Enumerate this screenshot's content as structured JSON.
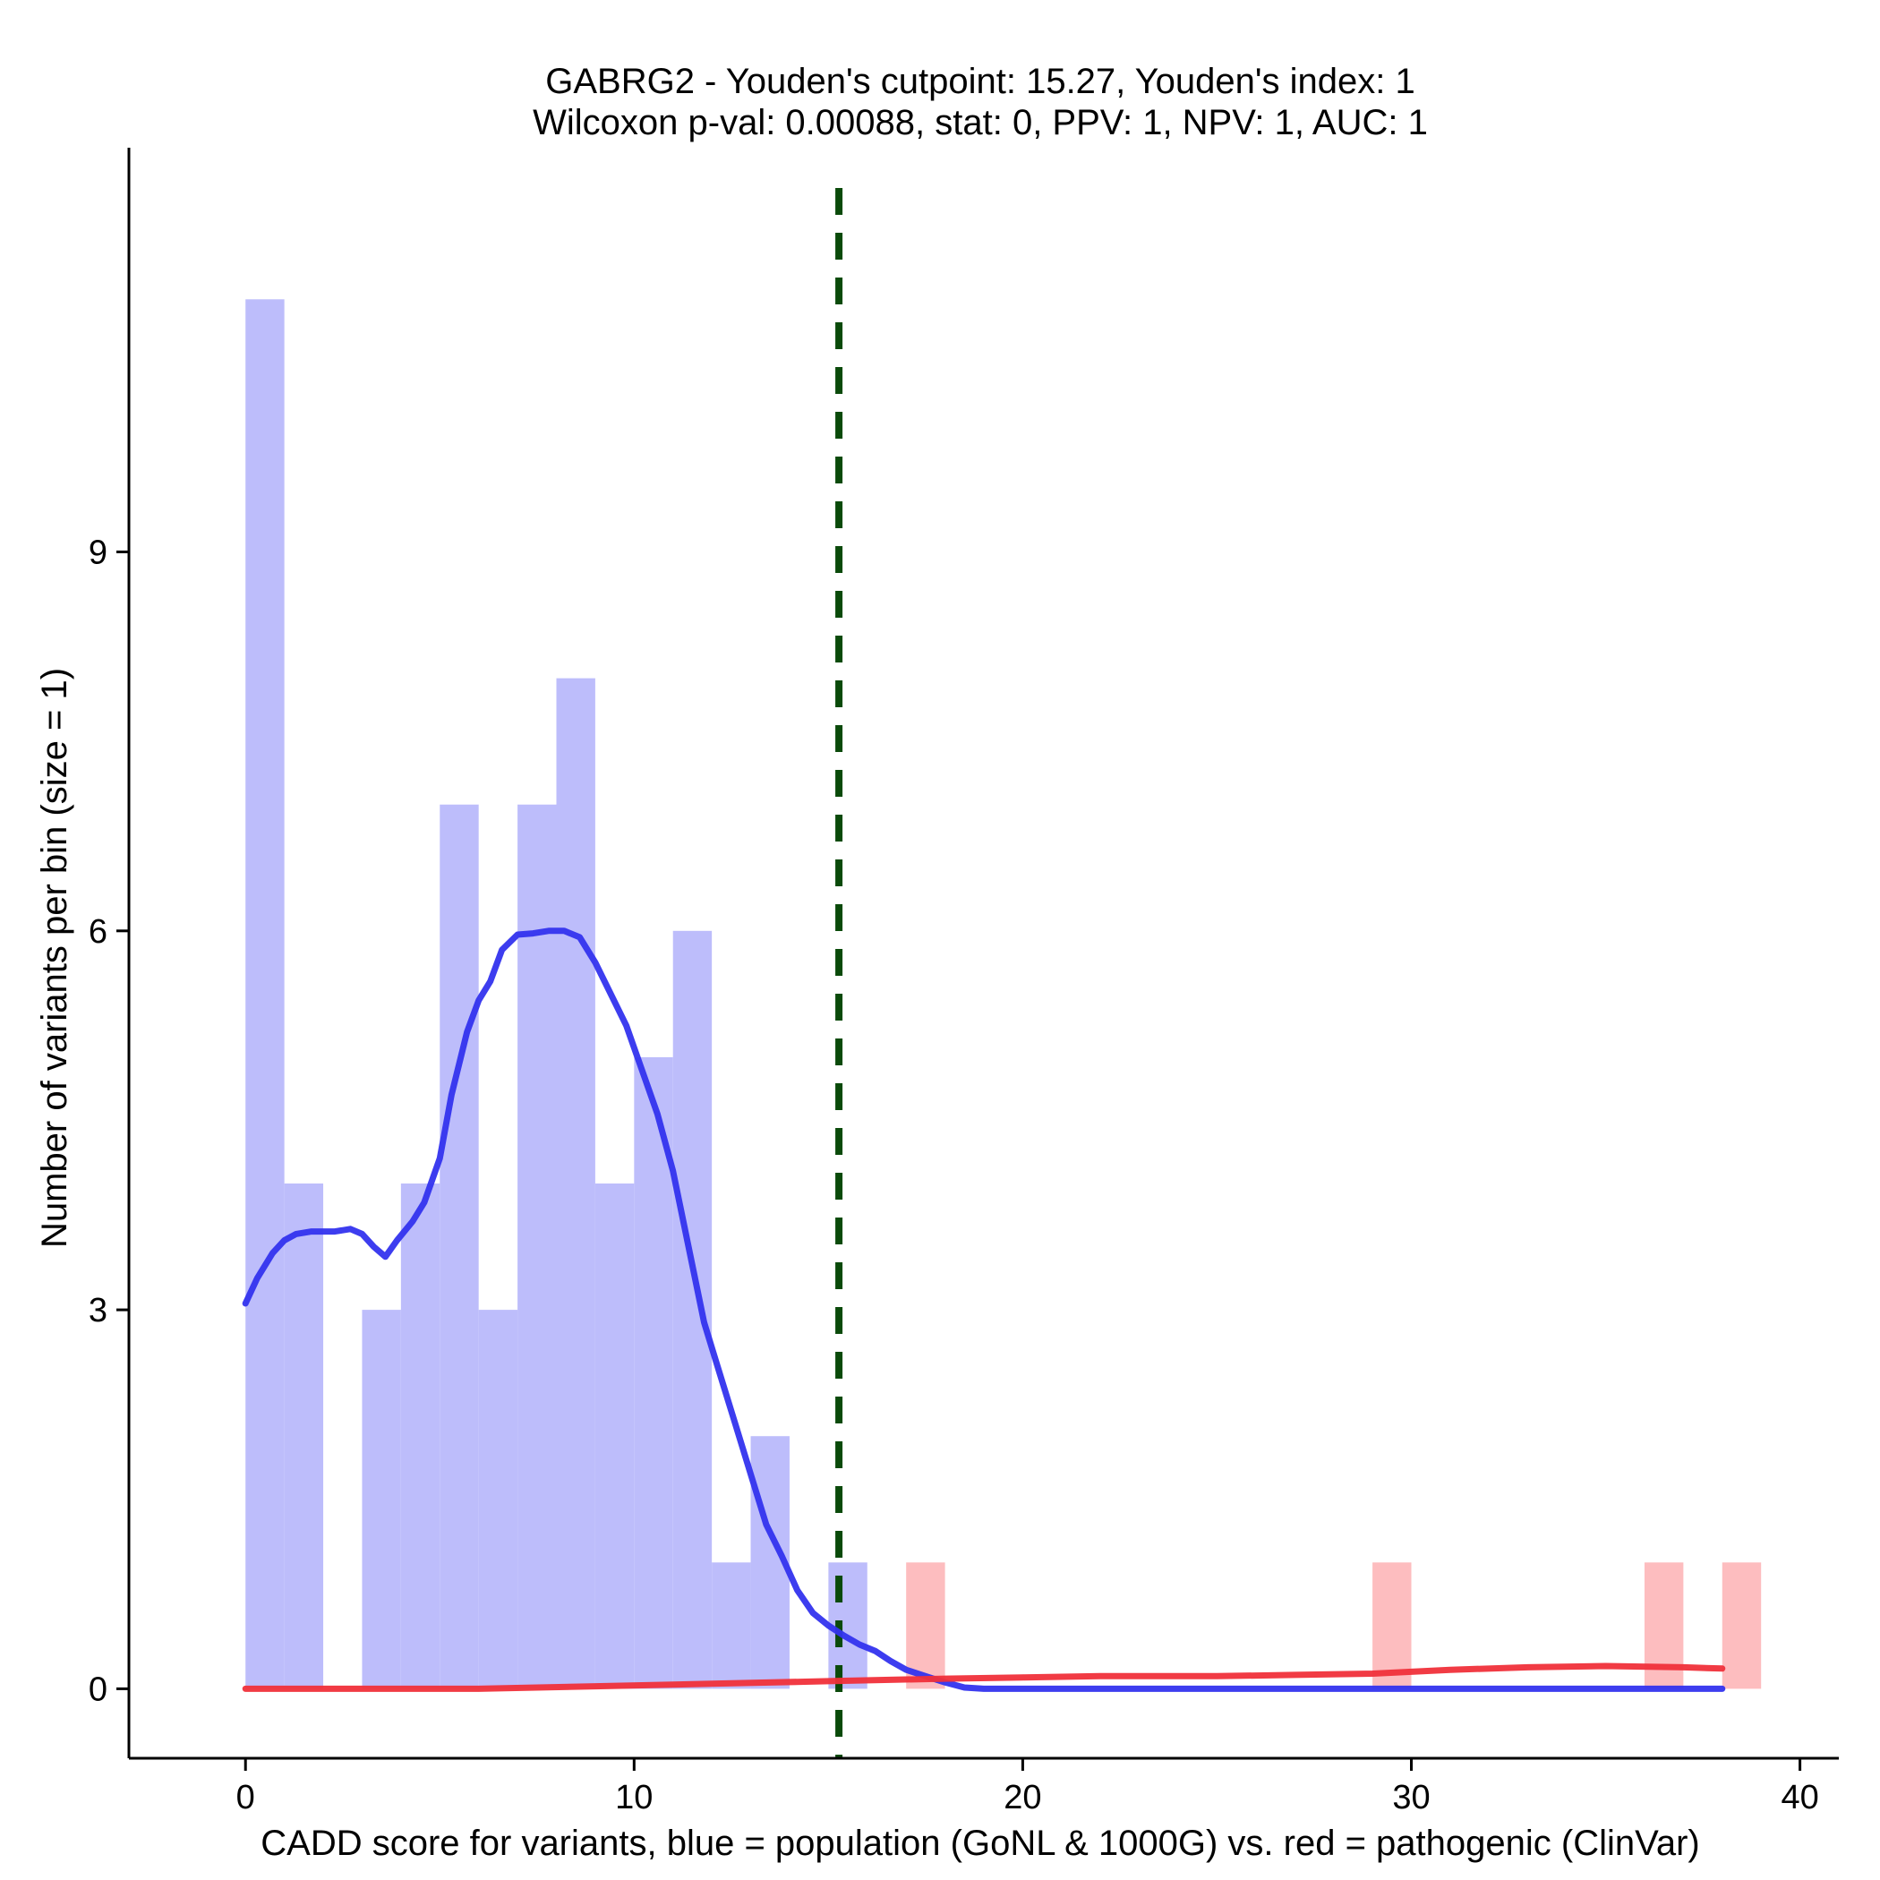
{
  "chart_data": {
    "type": "bar",
    "title": "GABRG2 - Youden's cutpoint: 15.27, Youden's index: 1",
    "subtitle": "Wilcoxon p-val: 0.00088, stat: 0, PPV: 1, NPV: 1, AUC: 1",
    "xlabel": "CADD score for variants, blue = population (GoNL & 1000G) vs. red = pathogenic (ClinVar)",
    "ylabel": "Number of variants per bin (size = 1)",
    "xlim": [
      -3,
      41
    ],
    "ylim": [
      -0.55,
      12.2
    ],
    "x_ticks": [
      0,
      10,
      20,
      30,
      40
    ],
    "y_ticks": [
      0,
      3,
      6,
      9
    ],
    "bin_width": 1,
    "cutpoint": 15.27,
    "colors": {
      "population_bars": "#bdbdfb",
      "pathogenic_bars": "#fdbdbf",
      "population_density": "#3333ee",
      "pathogenic_density": "#f0303a",
      "cutpoint_line": "#0a4a0a"
    },
    "series": [
      {
        "name": "population (GoNL & 1000G)",
        "bins": [
          {
            "x0": 0,
            "count": 11
          },
          {
            "x0": 1,
            "count": 4
          },
          {
            "x0": 2,
            "count": 0
          },
          {
            "x0": 3,
            "count": 3
          },
          {
            "x0": 4,
            "count": 4
          },
          {
            "x0": 5,
            "count": 7
          },
          {
            "x0": 6,
            "count": 3
          },
          {
            "x0": 7,
            "count": 7
          },
          {
            "x0": 8,
            "count": 8
          },
          {
            "x0": 9,
            "count": 4
          },
          {
            "x0": 10,
            "count": 5
          },
          {
            "x0": 11,
            "count": 6
          },
          {
            "x0": 12,
            "count": 1
          },
          {
            "x0": 13,
            "count": 2
          },
          {
            "x0": 14,
            "count": 0
          },
          {
            "x0": 15,
            "count": 1
          }
        ],
        "density": [
          [
            0,
            3.05
          ],
          [
            0.3,
            3.25
          ],
          [
            0.7,
            3.45
          ],
          [
            1.0,
            3.55
          ],
          [
            1.3,
            3.6
          ],
          [
            1.7,
            3.62
          ],
          [
            2.0,
            3.62
          ],
          [
            2.3,
            3.62
          ],
          [
            2.7,
            3.64
          ],
          [
            3.0,
            3.6
          ],
          [
            3.3,
            3.5
          ],
          [
            3.6,
            3.42
          ],
          [
            3.9,
            3.55
          ],
          [
            4.3,
            3.7
          ],
          [
            4.6,
            3.85
          ],
          [
            5.0,
            4.2
          ],
          [
            5.3,
            4.7
          ],
          [
            5.7,
            5.2
          ],
          [
            6.0,
            5.45
          ],
          [
            6.3,
            5.6
          ],
          [
            6.6,
            5.85
          ],
          [
            7.0,
            5.97
          ],
          [
            7.4,
            5.98
          ],
          [
            7.8,
            6.0
          ],
          [
            8.2,
            6.0
          ],
          [
            8.6,
            5.95
          ],
          [
            9.0,
            5.75
          ],
          [
            9.4,
            5.5
          ],
          [
            9.8,
            5.25
          ],
          [
            10.2,
            4.9
          ],
          [
            10.6,
            4.55
          ],
          [
            11.0,
            4.1
          ],
          [
            11.4,
            3.5
          ],
          [
            11.8,
            2.9
          ],
          [
            12.2,
            2.5
          ],
          [
            12.6,
            2.1
          ],
          [
            13.0,
            1.7
          ],
          [
            13.4,
            1.3
          ],
          [
            13.8,
            1.05
          ],
          [
            14.2,
            0.78
          ],
          [
            14.6,
            0.6
          ],
          [
            15.0,
            0.5
          ],
          [
            15.4,
            0.42
          ],
          [
            15.8,
            0.35
          ],
          [
            16.2,
            0.3
          ],
          [
            16.6,
            0.22
          ],
          [
            17.0,
            0.15
          ],
          [
            17.5,
            0.1
          ],
          [
            18.0,
            0.05
          ],
          [
            18.5,
            0.01
          ],
          [
            19.0,
            0
          ],
          [
            20,
            0
          ],
          [
            25,
            0
          ],
          [
            30,
            0
          ],
          [
            35,
            0
          ],
          [
            38,
            0
          ]
        ]
      },
      {
        "name": "pathogenic (ClinVar)",
        "bins": [
          {
            "x0": 17,
            "count": 1
          },
          {
            "x0": 29,
            "count": 1
          },
          {
            "x0": 36,
            "count": 1
          },
          {
            "x0": 38,
            "count": 1
          }
        ],
        "density": [
          [
            0,
            0
          ],
          [
            3,
            0
          ],
          [
            6,
            0
          ],
          [
            9,
            0.02
          ],
          [
            12,
            0.04
          ],
          [
            15,
            0.06
          ],
          [
            18,
            0.08
          ],
          [
            20,
            0.09
          ],
          [
            22,
            0.1
          ],
          [
            25,
            0.1
          ],
          [
            27,
            0.11
          ],
          [
            29,
            0.12
          ],
          [
            31,
            0.15
          ],
          [
            33,
            0.17
          ],
          [
            35,
            0.18
          ],
          [
            37,
            0.17
          ],
          [
            38,
            0.16
          ]
        ]
      }
    ]
  }
}
